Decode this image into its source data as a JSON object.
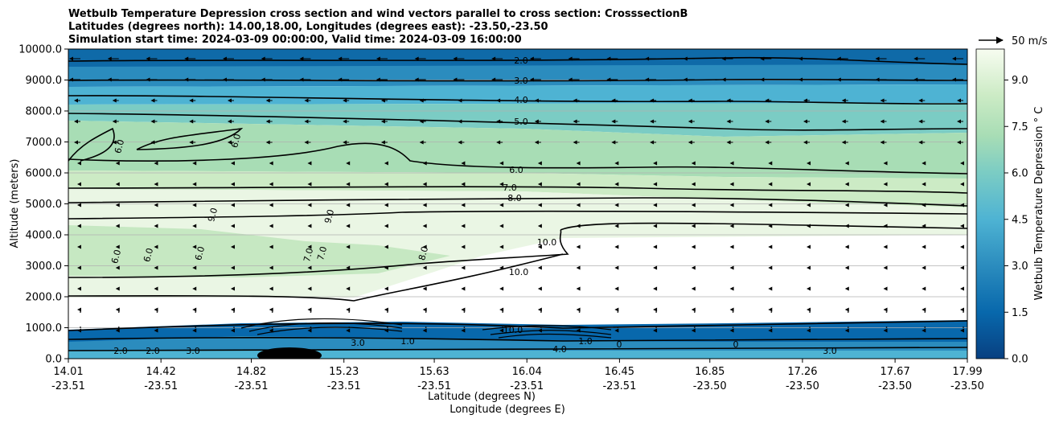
{
  "chart_data": {
    "type": "contour",
    "title_lines": [
      "Wetbulb Temperature Depression cross section and wind vectors parallel to cross section: CrosssectionB",
      "Latitudes (degrees north): 14.00,18.00, Longitudes (degrees east): -23.50,-23.50",
      "Simulation start time: 2024-03-09 00:00:00, Valid time: 2024-03-09 16:00:00"
    ],
    "ylabel": "Altitude (meters)",
    "xlabel_lat": "Latitude (degrees N)",
    "xlabel_lon": "Longitude (degrees E)",
    "ylim": [
      0,
      10000
    ],
    "y_ticks": [
      "0.0",
      "1000.0",
      "2000.0",
      "3000.0",
      "4000.0",
      "5000.0",
      "6000.0",
      "7000.0",
      "8000.0",
      "9000.0",
      "10000.0"
    ],
    "x_ticks_lat": [
      "14.01",
      "14.42",
      "14.82",
      "15.23",
      "15.63",
      "16.04",
      "16.45",
      "16.85",
      "17.26",
      "17.67",
      "17.99"
    ],
    "x_ticks_lon": [
      "-23.51",
      "-23.51",
      "-23.51",
      "-23.51",
      "-23.51",
      "-23.51",
      "-23.51",
      "-23.50",
      "-23.50",
      "-23.50",
      "-23.50"
    ],
    "colorbar_label": "Wetbulb Temperature Depression ° C",
    "colorbar_range": [
      0,
      10
    ],
    "colorbar_ticks": [
      "0.0",
      "1.5",
      "3.0",
      "4.5",
      "6.0",
      "7.5",
      "9.0"
    ],
    "colormap": "GnBu_r",
    "colors": {
      "low": "#084081",
      "mid": "#4eb3d3",
      "mid_high": "#7bccc4",
      "high": "#ccebc5",
      "top": "#f7fcf0",
      "contour": "#000000",
      "grid": "#b0b0b0"
    },
    "quiver_key": {
      "label": "50 m/s"
    },
    "grid": true,
    "contour_labels_upper": [
      "2.0",
      "3.0",
      "4.0",
      "5.0",
      "6.0",
      "7.0",
      "8.0",
      "10.0",
      "10.0"
    ],
    "contour_labels_middle": [
      "6.0",
      "6.0",
      "9.0",
      "9.0",
      "6.0",
      "6.0",
      "6.0",
      "7.0",
      "7.0",
      "8.0"
    ],
    "contour_labels_lower": [
      "2.0",
      "2.0",
      "3.0",
      "3.0",
      "1.0",
      "10.0",
      "1.0",
      "4.0",
      "0",
      "0",
      "3.0"
    ]
  }
}
